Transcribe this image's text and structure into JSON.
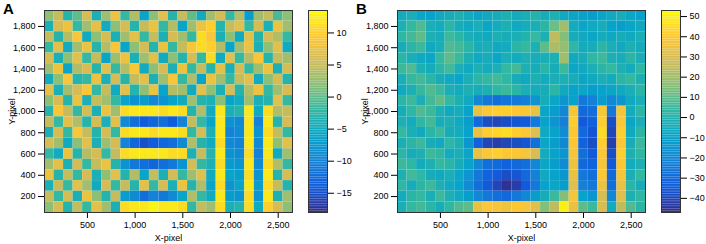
{
  "chart_data": [
    {
      "type": "heatmap",
      "title": "A",
      "xlabel": "X-pixel",
      "ylabel": "Y-pixel",
      "x": [
        100,
        200,
        300,
        400,
        500,
        600,
        700,
        800,
        900,
        1000,
        1100,
        1200,
        1300,
        1400,
        1500,
        1600,
        1700,
        1800,
        1900,
        2000,
        2100,
        2200,
        2300,
        2400,
        2500,
        2600
      ],
      "y": [
        1900,
        1800,
        1700,
        1600,
        1500,
        1400,
        1300,
        1200,
        1100,
        1000,
        900,
        800,
        700,
        600,
        500,
        400,
        300,
        200,
        100
      ],
      "values": [
        [
          2,
          5,
          -3,
          0,
          6,
          -4,
          3,
          8,
          -2,
          4,
          -6,
          2,
          7,
          -3,
          5,
          0,
          -5,
          3,
          6,
          -2,
          4,
          -7,
          3,
          5,
          -1,
          2
        ],
        [
          -4,
          6,
          8,
          -2,
          3,
          7,
          -5,
          2,
          6,
          -3,
          5,
          8,
          -2,
          4,
          -6,
          3,
          8,
          10,
          -3,
          5,
          7,
          -2,
          6,
          -4,
          8,
          3
        ],
        [
          5,
          -3,
          4,
          9,
          -5,
          2,
          6,
          -4,
          3,
          7,
          -2,
          5,
          -4,
          6,
          3,
          -2,
          11,
          9,
          -4,
          2,
          -5,
          7,
          -3,
          6,
          4,
          -2
        ],
        [
          -2,
          7,
          -5,
          3,
          8,
          -3,
          4,
          9,
          -6,
          2,
          6,
          -3,
          8,
          -2,
          5,
          9,
          11,
          10,
          4,
          -6,
          3,
          8,
          -4,
          2,
          7,
          -5
        ],
        [
          6,
          -4,
          2,
          7,
          -2,
          5,
          -6,
          3,
          8,
          -4,
          3,
          7,
          -5,
          2,
          -3,
          6,
          -2,
          11,
          -5,
          7,
          -2,
          4,
          9,
          -3,
          5,
          3
        ],
        [
          3,
          8,
          -6,
          4,
          6,
          -3,
          7,
          -2,
          4,
          9,
          -5,
          2,
          6,
          -4,
          8,
          -2,
          5,
          -3,
          7,
          -4,
          6,
          -2,
          3,
          8,
          -4,
          6
        ],
        [
          -5,
          2,
          9,
          -3,
          -2,
          8,
          -4,
          6,
          -3,
          5,
          7,
          -4,
          3,
          9,
          -2,
          4,
          -6,
          8,
          3,
          -2,
          5,
          7,
          -5,
          2,
          6,
          -3
        ],
        [
          7,
          -4,
          3,
          6,
          9,
          -2,
          5,
          -5,
          7,
          -3,
          2,
          8,
          -6,
          4,
          3,
          -5,
          7,
          2,
          -4,
          6,
          -3,
          4,
          8,
          -2,
          3,
          6
        ],
        [
          2,
          6,
          -3,
          8,
          -4,
          5,
          3,
          -2,
          -6,
          -8,
          -7,
          -9,
          -8,
          -6,
          -5,
          3,
          -3,
          -4,
          2,
          -6,
          -5,
          3,
          -4,
          -3,
          7,
          -2
        ],
        [
          -3,
          9,
          5,
          -2,
          6,
          -4,
          8,
          3,
          11,
          12,
          12,
          12,
          11,
          12,
          11,
          -3,
          4,
          -5,
          12,
          -4,
          -3,
          12,
          -5,
          11,
          4,
          5
        ],
        [
          5,
          -2,
          7,
          4,
          -3,
          6,
          -4,
          7,
          -9,
          -12,
          -14,
          -13,
          -12,
          -14,
          -10,
          5,
          -2,
          -6,
          12,
          -8,
          -9,
          12,
          -10,
          12,
          -3,
          6
        ],
        [
          -4,
          6,
          -2,
          9,
          5,
          -3,
          6,
          -2,
          11,
          12,
          12,
          11,
          12,
          12,
          11,
          -2,
          6,
          -4,
          12,
          -10,
          -9,
          12,
          -8,
          11,
          5,
          -2
        ],
        [
          6,
          3,
          -5,
          2,
          7,
          -4,
          3,
          6,
          -10,
          -13,
          -15,
          -14,
          -13,
          -12,
          -9,
          4,
          -3,
          -5,
          11,
          -9,
          -10,
          12,
          -9,
          12,
          2,
          7
        ],
        [
          -2,
          -5,
          8,
          -3,
          4,
          6,
          -2,
          5,
          11,
          12,
          12,
          12,
          12,
          11,
          11,
          -4,
          5,
          -3,
          12,
          -8,
          -9,
          11,
          -10,
          12,
          -5,
          3
        ],
        [
          3,
          7,
          -4,
          6,
          -2,
          5,
          8,
          -3,
          -8,
          -11,
          -12,
          -13,
          -12,
          -11,
          -8,
          6,
          -2,
          -4,
          11,
          -7,
          -8,
          12,
          -9,
          11,
          4,
          -2
        ],
        [
          8,
          -3,
          5,
          -2,
          6,
          -4,
          2,
          7,
          -3,
          4,
          -6,
          5,
          -4,
          6,
          -2,
          3,
          7,
          -5,
          12,
          -6,
          -7,
          11,
          -8,
          12,
          -3,
          6
        ],
        [
          -4,
          5,
          -2,
          7,
          3,
          -5,
          6,
          -2,
          5,
          -3,
          7,
          -2,
          6,
          -4,
          8,
          -3,
          4,
          -6,
          11,
          -8,
          -6,
          12,
          -7,
          11,
          5,
          -3
        ],
        [
          5,
          -2,
          6,
          -4,
          8,
          2,
          -3,
          5,
          -7,
          -9,
          -12,
          -10,
          -11,
          -9,
          -6,
          4,
          -2,
          -5,
          12,
          -7,
          -8,
          11,
          -8,
          12,
          -4,
          3
        ],
        [
          2,
          6,
          -3,
          5,
          -2,
          7,
          3,
          -4,
          11,
          12,
          12,
          13,
          12,
          12,
          11,
          -2,
          5,
          3,
          11,
          -4,
          -3,
          11,
          -5,
          10,
          6,
          2
        ]
      ],
      "xlim": [
        50,
        2650
      ],
      "ylim": [
        50,
        1950
      ],
      "xticks": [
        500,
        1000,
        1500,
        2000,
        2500
      ],
      "yticks": [
        200,
        400,
        600,
        800,
        1000,
        1200,
        1400,
        1600,
        1800
      ],
      "colorbar_range": [
        -18,
        13.5
      ],
      "colorbar_ticks": [
        -15,
        -10,
        -5,
        0,
        5,
        10
      ]
    },
    {
      "type": "heatmap",
      "title": "B",
      "xlabel": "X-pixel",
      "ylabel": "Y-pixel",
      "x": [
        100,
        200,
        300,
        400,
        500,
        600,
        700,
        800,
        900,
        1000,
        1100,
        1200,
        1300,
        1400,
        1500,
        1600,
        1700,
        1800,
        1900,
        2000,
        2100,
        2200,
        2300,
        2400,
        2500,
        2600
      ],
      "y": [
        1900,
        1800,
        1700,
        1600,
        1500,
        1400,
        1300,
        1200,
        1100,
        1000,
        900,
        800,
        700,
        600,
        500,
        400,
        300,
        200,
        100
      ],
      "values": [
        [
          -5,
          -3,
          -8,
          -10,
          -6,
          -4,
          -2,
          -5,
          -8,
          -6,
          -4,
          -2,
          -5,
          -3,
          0,
          -4,
          -2,
          -6,
          -8,
          -10,
          -12,
          -9,
          -6,
          -4,
          -8,
          -10
        ],
        [
          -2,
          4,
          8,
          -3,
          -5,
          2,
          -4,
          -6,
          -3,
          -8,
          -5,
          -2,
          -6,
          -4,
          -3,
          2,
          12,
          20,
          -5,
          -8,
          -6,
          -4,
          -10,
          -12,
          -8,
          -6
        ],
        [
          3,
          6,
          10,
          -2,
          -4,
          5,
          2,
          -3,
          -5,
          -6,
          -2,
          -4,
          -3,
          0,
          4,
          -2,
          25,
          15,
          -4,
          -6,
          -8,
          -5,
          -7,
          -4,
          -6,
          -3
        ],
        [
          -4,
          2,
          5,
          -6,
          -3,
          8,
          6,
          2,
          -4,
          -3,
          -6,
          -5,
          2,
          4,
          -2,
          10,
          22,
          18,
          3,
          -5,
          -4,
          2,
          -3,
          -6,
          -2,
          -5
        ],
        [
          2,
          -3,
          -6,
          -8,
          4,
          10,
          5,
          -2,
          -6,
          -4,
          -8,
          -3,
          -5,
          -2,
          -4,
          -3,
          -2,
          20,
          -6,
          -4,
          3,
          5,
          -2,
          -4,
          2,
          -3
        ],
        [
          5,
          8,
          -2,
          -5,
          2,
          6,
          -3,
          -6,
          -2,
          -5,
          -3,
          4,
          6,
          -2,
          -4,
          2,
          -4,
          5,
          -8,
          -6,
          -3,
          2,
          4,
          -2,
          -5,
          3
        ],
        [
          -3,
          4,
          6,
          2,
          -4,
          -6,
          -8,
          -3,
          2,
          4,
          6,
          3,
          -4,
          -6,
          -2,
          -5,
          -3,
          -2,
          -4,
          -8,
          -6,
          -3,
          -5,
          2,
          4,
          -2
        ],
        [
          -6,
          -2,
          4,
          8,
          5,
          -3,
          -5,
          -2,
          -4,
          -2,
          3,
          5,
          2,
          -3,
          -5,
          -4,
          2,
          -6,
          -10,
          -8,
          -12,
          -10,
          -8,
          -6,
          -3,
          2
        ],
        [
          2,
          5,
          -3,
          6,
          10,
          4,
          -2,
          -6,
          -20,
          -25,
          -28,
          -26,
          -24,
          -22,
          -15,
          -4,
          -8,
          -15,
          -10,
          -25,
          -22,
          -12,
          -20,
          -15,
          -6,
          -3
        ],
        [
          -4,
          3,
          8,
          5,
          -2,
          -6,
          -4,
          -10,
          35,
          40,
          42,
          42,
          40,
          40,
          35,
          -8,
          -12,
          -20,
          38,
          -30,
          -28,
          40,
          -25,
          38,
          -5,
          2
        ],
        [
          -2,
          -5,
          3,
          6,
          -4,
          -2,
          -6,
          -12,
          -30,
          -38,
          -40,
          -38,
          -36,
          -35,
          -25,
          -10,
          -15,
          -22,
          42,
          -35,
          -32,
          42,
          -38,
          40,
          -8,
          -3
        ],
        [
          4,
          -3,
          -6,
          2,
          5,
          -4,
          -5,
          -10,
          35,
          42,
          44,
          45,
          42,
          40,
          32,
          -6,
          -10,
          -18,
          40,
          -30,
          -36,
          45,
          -40,
          42,
          -6,
          2
        ],
        [
          -3,
          2,
          5,
          -4,
          -6,
          3,
          -2,
          -15,
          -32,
          -40,
          -42,
          -40,
          -38,
          -36,
          -28,
          -8,
          -12,
          -20,
          40,
          -32,
          -38,
          42,
          -42,
          40,
          -4,
          5
        ],
        [
          2,
          -4,
          -2,
          5,
          3,
          -5,
          -3,
          -8,
          35,
          40,
          42,
          40,
          40,
          38,
          30,
          -5,
          -10,
          -15,
          38,
          -28,
          -35,
          40,
          -38,
          42,
          -2,
          3
        ],
        [
          5,
          3,
          -5,
          -2,
          4,
          2,
          -4,
          -10,
          -20,
          -28,
          -30,
          -32,
          -30,
          -28,
          -20,
          -8,
          -12,
          -18,
          36,
          -30,
          -32,
          38,
          -35,
          40,
          -5,
          -2
        ],
        [
          -2,
          6,
          3,
          -4,
          -6,
          -3,
          -8,
          -15,
          -25,
          -32,
          -35,
          -38,
          -36,
          -30,
          -22,
          -6,
          -10,
          -15,
          35,
          -25,
          -28,
          40,
          -30,
          38,
          -3,
          4
        ],
        [
          3,
          -4,
          2,
          5,
          -2,
          -6,
          -10,
          -18,
          -28,
          -35,
          -40,
          -45,
          -42,
          -35,
          -25,
          -10,
          -8,
          -12,
          32,
          -22,
          -25,
          36,
          -28,
          35,
          2,
          -4
        ],
        [
          -5,
          2,
          4,
          -3,
          5,
          -2,
          -6,
          -12,
          -20,
          -25,
          -28,
          -30,
          -25,
          -20,
          -12,
          -4,
          5,
          15,
          38,
          -10,
          -15,
          30,
          -20,
          32,
          -2,
          3
        ],
        [
          -3,
          4,
          6,
          2,
          -4,
          3,
          8,
          10,
          35,
          40,
          38,
          36,
          40,
          38,
          32,
          15,
          25,
          50,
          35,
          10,
          5,
          30,
          -5,
          25,
          8,
          2
        ]
      ],
      "xlim": [
        50,
        2650
      ],
      "ylim": [
        50,
        1950
      ],
      "xticks": [
        500,
        1000,
        1500,
        2000,
        2500
      ],
      "yticks": [
        200,
        400,
        600,
        800,
        1000,
        1200,
        1400,
        1600,
        1800
      ],
      "colorbar_range": [
        -47,
        53
      ],
      "colorbar_ticks": [
        -40,
        -30,
        -20,
        -10,
        0,
        10,
        20,
        30,
        40,
        50
      ]
    }
  ]
}
